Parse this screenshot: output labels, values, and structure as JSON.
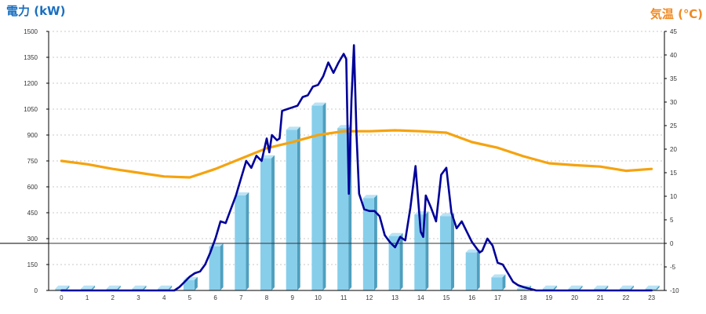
{
  "chart_data": {
    "type": "bar+line",
    "title_left": "電力 (kW)",
    "title_right": "気温 (℃)",
    "colors": {
      "title_left": "#1a6fc0",
      "title_right": "#f08a24",
      "bar_front": "#87ceeb",
      "bar_side": "#4f9fbf",
      "bar_top": "#b9e3f5",
      "power_line": "#000099",
      "temp_line": "#f5a30f",
      "grid": "#c8c8c8"
    },
    "x_ticks": [
      "0",
      "1",
      "2",
      "3",
      "4",
      "5",
      "6",
      "7",
      "8",
      "9",
      "10",
      "11",
      "12",
      "13",
      "14",
      "15",
      "16",
      "17",
      "18",
      "19",
      "20",
      "21",
      "22",
      "23"
    ],
    "y_left": {
      "min": 0,
      "max": 1500,
      "step": 150,
      "ticks": [
        "0",
        "150",
        "300",
        "450",
        "600",
        "750",
        "900",
        "1050",
        "1200",
        "1350",
        "1500"
      ]
    },
    "y_right": {
      "min": -10,
      "max": 45,
      "step": 5,
      "ticks": [
        "-10",
        "-5",
        "0",
        "5",
        "10",
        "15",
        "20",
        "25",
        "30",
        "35",
        "40",
        "45"
      ]
    },
    "reference_line_left": 273,
    "hourly_bars": {
      "name": "",
      "values": [
        10,
        10,
        10,
        10,
        10,
        60,
        255,
        550,
        765,
        930,
        1070,
        940,
        535,
        315,
        440,
        430,
        220,
        75,
        10,
        10,
        10,
        10,
        10,
        10
      ]
    },
    "power_line": {
      "name": "",
      "x": [
        0,
        0.5,
        1,
        1.5,
        2,
        2.5,
        3,
        3.5,
        4,
        4.4,
        4.6,
        4.8,
        5,
        5.2,
        5.4,
        5.6,
        5.8,
        6,
        6.2,
        6.4,
        6.6,
        6.8,
        7,
        7.2,
        7.4,
        7.6,
        7.8,
        8,
        8.1,
        8.2,
        8.4,
        8.5,
        8.6,
        8.8,
        9,
        9.2,
        9.4,
        9.6,
        9.8,
        10,
        10.2,
        10.4,
        10.6,
        10.8,
        11,
        11.1,
        11.2,
        11.3,
        11.4,
        11.5,
        11.6,
        11.8,
        12,
        12.2,
        12.4,
        12.6,
        12.8,
        13,
        13.2,
        13.4,
        13.6,
        13.8,
        14,
        14.1,
        14.2,
        14.4,
        14.6,
        14.8,
        15,
        15.2,
        15.4,
        15.6,
        15.8,
        16,
        16.2,
        16.3,
        16.4,
        16.6,
        16.8,
        17,
        17.2,
        17.4,
        17.6,
        17.8,
        18,
        18.5,
        19,
        20,
        21,
        22,
        23
      ],
      "values": [
        0,
        0,
        0,
        0,
        0,
        0,
        0,
        0,
        0,
        0,
        20,
        50,
        80,
        100,
        110,
        150,
        220,
        300,
        400,
        390,
        470,
        550,
        650,
        750,
        710,
        780,
        750,
        880,
        800,
        900,
        870,
        880,
        1040,
        1050,
        1060,
        1070,
        1120,
        1130,
        1180,
        1190,
        1240,
        1320,
        1260,
        1320,
        1370,
        1340,
        560,
        1100,
        1420,
        900,
        560,
        470,
        460,
        460,
        430,
        320,
        280,
        250,
        310,
        290,
        480,
        720,
        340,
        310,
        550,
        480,
        400,
        670,
        710,
        450,
        360,
        400,
        340,
        280,
        240,
        220,
        230,
        300,
        260,
        160,
        150,
        100,
        50,
        30,
        20,
        0,
        0,
        0,
        0,
        0,
        0
      ]
    },
    "temperature_line": {
      "name": "",
      "x": [
        0,
        1,
        2,
        3,
        4,
        5,
        6,
        7,
        8,
        9,
        10,
        11,
        12,
        13,
        14,
        15,
        16,
        17,
        18,
        19,
        20,
        21,
        22,
        23
      ],
      "values": [
        17.5,
        16.8,
        15.8,
        15.0,
        14.2,
        14.0,
        15.8,
        18.0,
        20.2,
        21.5,
        23.0,
        23.8,
        23.8,
        24.0,
        23.8,
        23.5,
        21.5,
        20.3,
        18.5,
        17.0,
        16.6,
        16.3,
        15.4,
        15.8
      ]
    }
  }
}
